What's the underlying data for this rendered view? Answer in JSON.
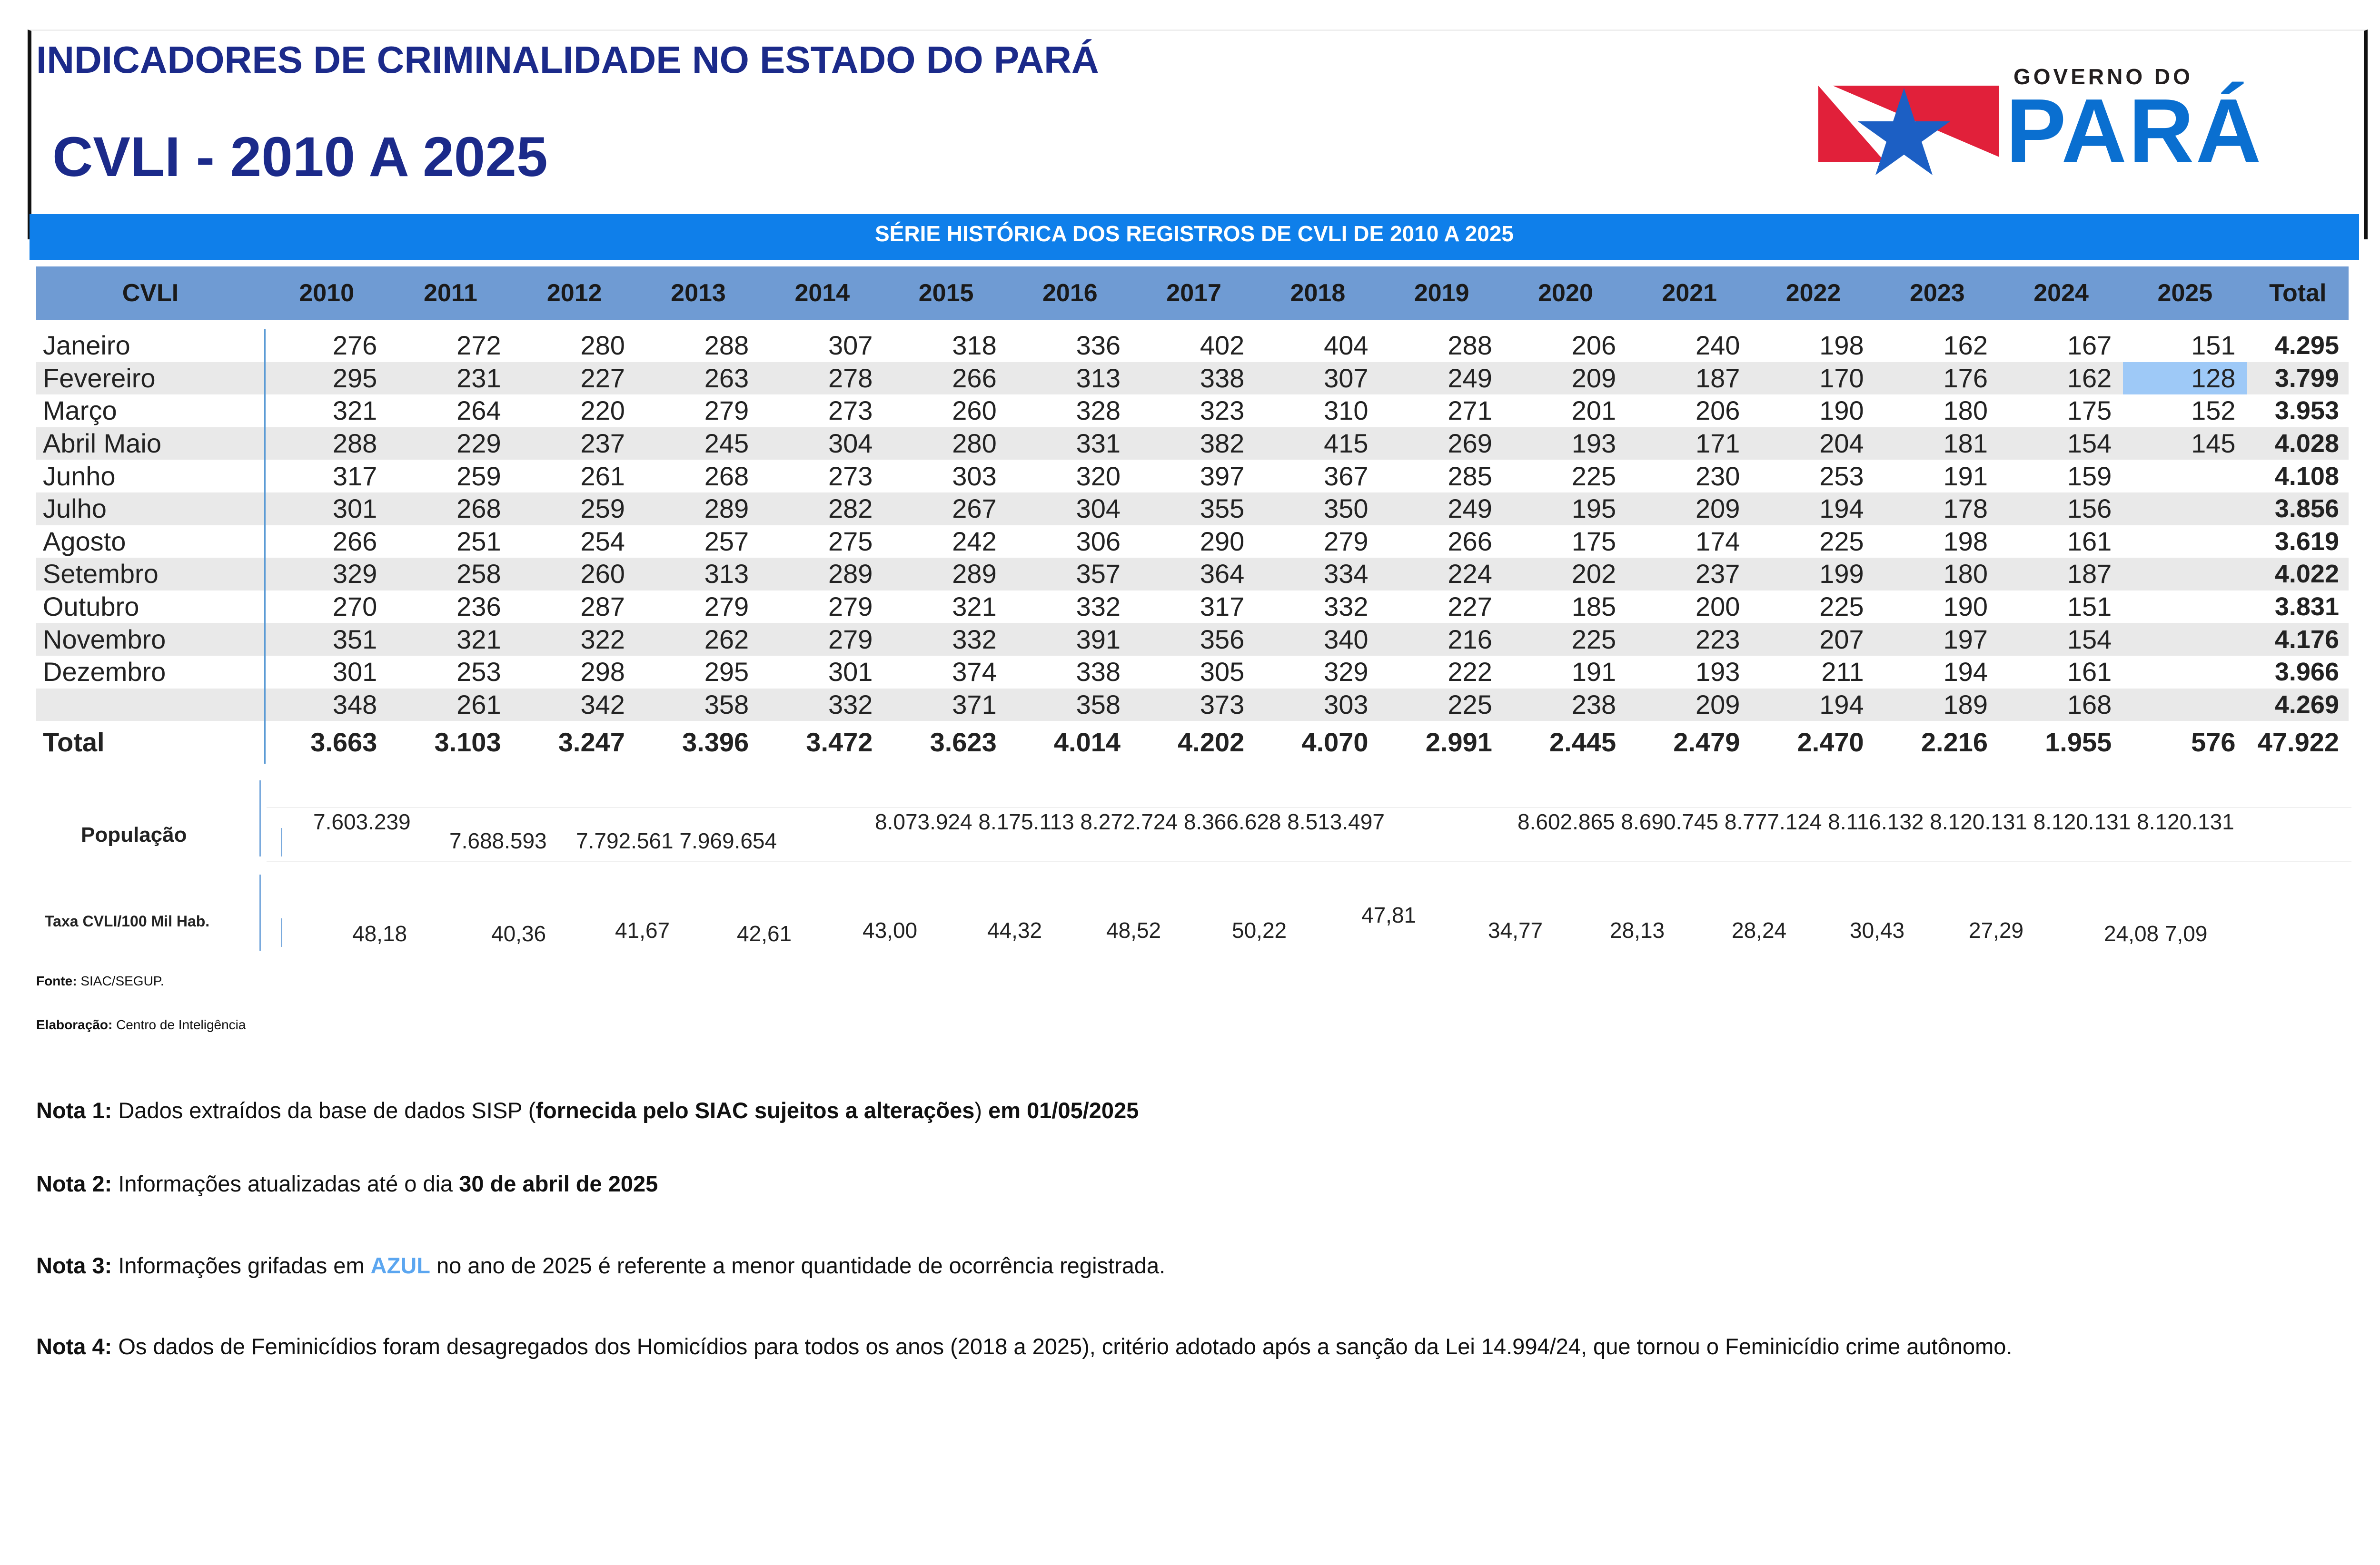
{
  "header": {
    "title": "INDICADORES DE CRIMINALIDADE NO ESTADO DO PARÁ",
    "subtitle": "CVLI - 2010 A 2025",
    "logo_top": "GOVERNO DO",
    "logo_main": "PARÁ",
    "colors": {
      "title": "#1b2a8a",
      "banner": "#0f7fea",
      "table_header": "#6f9bd3",
      "highlight": "#9ec9f7"
    }
  },
  "banner": "SÉRIE HISTÓRICA DOS REGISTROS DE CVLI DE 2010 A 2025",
  "table": {
    "corner": "CVLI",
    "years": [
      "2010",
      "2011",
      "2012",
      "2013",
      "2014",
      "2015",
      "2016",
      "2017",
      "2018",
      "2019",
      "2020",
      "2021",
      "2022",
      "2023",
      "2024",
      "2025"
    ],
    "total_label": "Total",
    "rows": [
      {
        "label": "Janeiro",
        "values": [
          "276",
          "272",
          "280",
          "288",
          "307",
          "318",
          "336",
          "402",
          "404",
          "288",
          "206",
          "240",
          "198",
          "162",
          "167",
          "151"
        ],
        "total": "4.295"
      },
      {
        "label": "Fevereiro",
        "values": [
          "295",
          "231",
          "227",
          "263",
          "278",
          "266",
          "313",
          "338",
          "307",
          "249",
          "209",
          "187",
          "170",
          "176",
          "162",
          "128"
        ],
        "total": "3.799"
      },
      {
        "label": "Março",
        "values": [
          "321",
          "264",
          "220",
          "279",
          "273",
          "260",
          "328",
          "323",
          "310",
          "271",
          "201",
          "206",
          "190",
          "180",
          "175",
          "152"
        ],
        "total": "3.953"
      },
      {
        "label": "Abril  Maio",
        "values": [
          "288",
          "229",
          "237",
          "245",
          "304",
          "280",
          "331",
          "382",
          "415",
          "269",
          "193",
          "171",
          "204",
          "181",
          "154",
          "145"
        ],
        "total": "4.028"
      },
      {
        "label": "Junho",
        "values": [
          "317",
          "259",
          "261",
          "268",
          "273",
          "303",
          "320",
          "397",
          "367",
          "285",
          "225",
          "230",
          "253",
          "191",
          "159",
          ""
        ],
        "total": "4.108"
      },
      {
        "label": "Julho",
        "values": [
          "301",
          "268",
          "259",
          "289",
          "282",
          "267",
          "304",
          "355",
          "350",
          "249",
          "195",
          "209",
          "194",
          "178",
          "156",
          ""
        ],
        "total": "3.856"
      },
      {
        "label": "Agosto",
        "values": [
          "266",
          "251",
          "254",
          "257",
          "275",
          "242",
          "306",
          "290",
          "279",
          "266",
          "175",
          "174",
          "225",
          "198",
          "161",
          ""
        ],
        "total": "3.619"
      },
      {
        "label": "Setembro",
        "values": [
          "329",
          "258",
          "260",
          "313",
          "289",
          "289",
          "357",
          "364",
          "334",
          "224",
          "202",
          "237",
          "199",
          "180",
          "187",
          ""
        ],
        "total": "4.022"
      },
      {
        "label": "Outubro",
        "values": [
          "270",
          "236",
          "287",
          "279",
          "279",
          "321",
          "332",
          "317",
          "332",
          "227",
          "185",
          "200",
          "225",
          "190",
          "151",
          ""
        ],
        "total": "3.831"
      },
      {
        "label": "Novembro",
        "values": [
          "351",
          "321",
          "322",
          "262",
          "279",
          "332",
          "391",
          "356",
          "340",
          "216",
          "225",
          "223",
          "207",
          "197",
          "154",
          ""
        ],
        "total": "4.176"
      },
      {
        "label": "Dezembro",
        "values": [
          "301",
          "253",
          "298",
          "295",
          "301",
          "374",
          "338",
          "305",
          "329",
          "222",
          "191",
          "193",
          "211",
          "194",
          "161",
          ""
        ],
        "total": "3.966"
      },
      {
        "label": "",
        "values": [
          "348",
          "261",
          "342",
          "358",
          "332",
          "371",
          "358",
          "373",
          "303",
          "225",
          "238",
          "209",
          "194",
          "189",
          "168",
          ""
        ],
        "total": "4.269"
      }
    ],
    "totals": {
      "label": "Total",
      "values": [
        "3.663",
        "3.103",
        "3.247",
        "3.396",
        "3.472",
        "3.623",
        "4.014",
        "4.202",
        "4.070",
        "2.991",
        "2.445",
        "2.479",
        "2.470",
        "2.216",
        "1.955",
        "576"
      ],
      "grand": "47.922"
    }
  },
  "populacao": {
    "label": "População",
    "v1": "7.603.239",
    "v2": "7.688.593",
    "v3": "7.792.561 7.969.654",
    "v4": "8.073.924 8.175.113 8.272.724 8.366.628 8.513.497",
    "v5": "8.602.865 8.690.745 8.777.124 8.116.132 8.120.131 8.120.131 8.120.131"
  },
  "taxa": {
    "label": "Taxa CVLI/100 Mil Hab.",
    "values": [
      "48,18",
      "40,36",
      "41,67",
      "42,61",
      "43,00",
      "44,32",
      "48,52",
      "50,22",
      "47,81",
      "34,77",
      "28,13",
      "28,24",
      "30,43",
      "27,29",
      "24,08 7,09"
    ]
  },
  "fonte": {
    "label": "Fonte:",
    "value": "SIAC/SEGUP."
  },
  "elaboracao": {
    "label": "Elaboração:",
    "value": "Centro de Inteligência"
  },
  "notas": {
    "n1_label": "Nota 1:",
    "n1_a": "Dados extraídos da base de dados SISP (",
    "n1_b": "fornecida pelo SIAC sujeitos a alterações",
    "n1_c": ")",
    "n1_d": " em ",
    "n1_date": "01/05/2025",
    "n2_label": "Nota 2:",
    "n2_a": "Informações atualizadas até o dia ",
    "n2_date": "30 de abril de 2025",
    "n3_label": "Nota 3:",
    "n3_a": "Informações grifadas em ",
    "n3_azul": "AZUL",
    "n3_b": " no ano de 2025 é referente a menor quantidade de ocorrência registrada.",
    "n4_label": "Nota 4:",
    "n4_a": "Os dados de Feminicídios foram desagregados dos Homicídios para todos os anos (2018 a 2025), critério adotado após a sanção da Lei 14.994/24, que tornou o Feminicídio crime autônomo."
  }
}
